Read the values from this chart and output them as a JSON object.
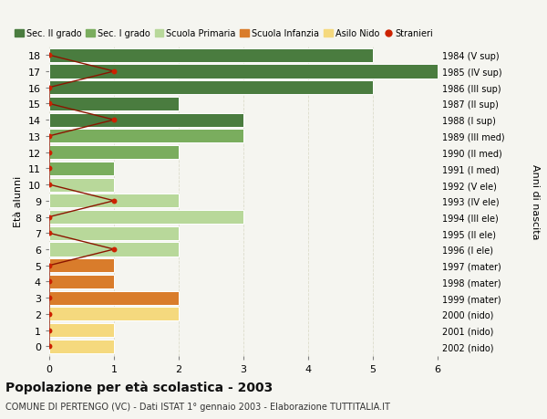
{
  "ages": [
    18,
    17,
    16,
    15,
    14,
    13,
    12,
    11,
    10,
    9,
    8,
    7,
    6,
    5,
    4,
    3,
    2,
    1,
    0
  ],
  "years": [
    "1984 (V sup)",
    "1985 (IV sup)",
    "1986 (III sup)",
    "1987 (II sup)",
    "1988 (I sup)",
    "1989 (III med)",
    "1990 (II med)",
    "1991 (I med)",
    "1992 (V ele)",
    "1993 (IV ele)",
    "1994 (III ele)",
    "1995 (II ele)",
    "1996 (I ele)",
    "1997 (mater)",
    "1998 (mater)",
    "1999 (mater)",
    "2000 (nido)",
    "2001 (nido)",
    "2002 (nido)"
  ],
  "bar_values": [
    5,
    6,
    5,
    2,
    3,
    3,
    2,
    1,
    1,
    2,
    3,
    2,
    2,
    1,
    1,
    2,
    2,
    1,
    1
  ],
  "stranieri_x": [
    0,
    1,
    0,
    0,
    1,
    0,
    0,
    0,
    0,
    1,
    0,
    0,
    1,
    0,
    0,
    0,
    0,
    0,
    0
  ],
  "age_colors": {
    "18": "#4a7c3f",
    "17": "#4a7c3f",
    "16": "#4a7c3f",
    "15": "#4a7c3f",
    "14": "#4a7c3f",
    "13": "#7aad5e",
    "12": "#7aad5e",
    "11": "#7aad5e",
    "10": "#b8d89a",
    "9": "#b8d89a",
    "8": "#b8d89a",
    "7": "#b8d89a",
    "6": "#b8d89a",
    "5": "#d97c2b",
    "4": "#d97c2b",
    "3": "#d97c2b",
    "2": "#f5d97e",
    "1": "#f5d97e",
    "0": "#f5d97e"
  },
  "legend_labels": [
    "Sec. II grado",
    "Sec. I grado",
    "Scuola Primaria",
    "Scuola Infanzia",
    "Asilo Nido",
    "Stranieri"
  ],
  "legend_colors": [
    "#4a7c3f",
    "#7aad5e",
    "#b8d89a",
    "#d97c2b",
    "#f5d97e",
    "#cc2200"
  ],
  "ylabel_left": "Età alunni",
  "ylabel_right": "Anni di nascita",
  "title": "Popolazione per età scolastica - 2003",
  "subtitle": "COMUNE DI PERTENGO (VC) - Dati ISTAT 1° gennaio 2003 - Elaborazione TUTTITALIA.IT",
  "xlim": [
    0,
    6
  ],
  "bg_color": "#f5f5f0",
  "grid_color": "#ddddcc",
  "stranieri_color": "#cc2200",
  "stranieri_line_color": "#8b1500",
  "bar_height": 0.85
}
